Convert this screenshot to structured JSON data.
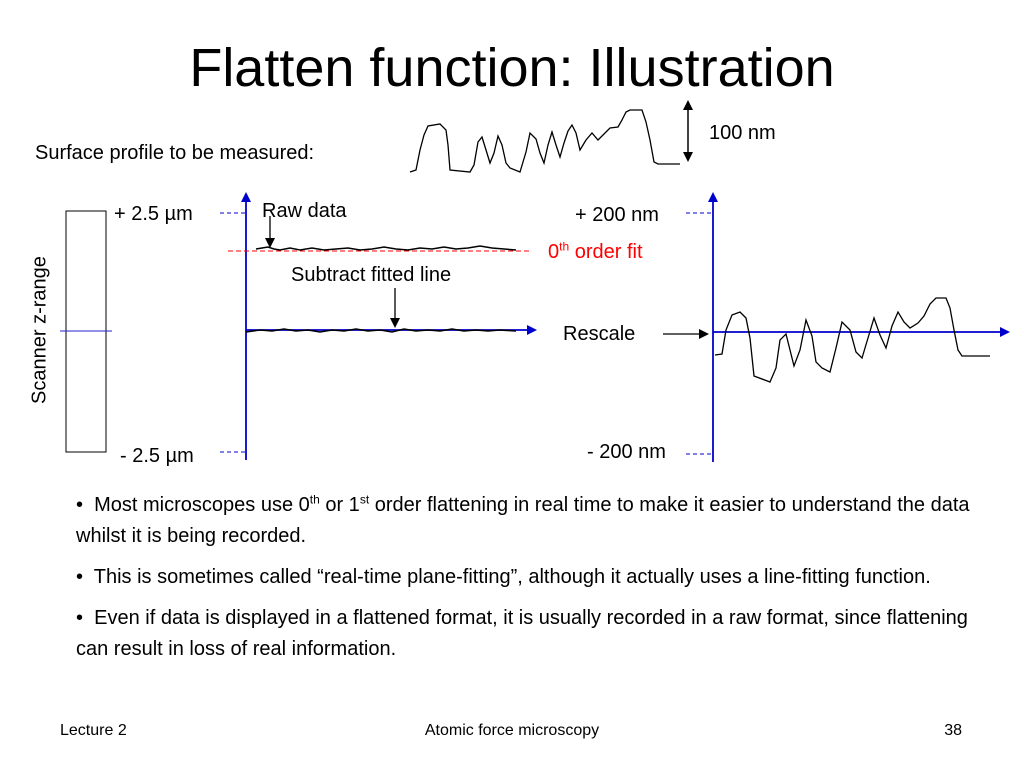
{
  "title": "Flatten function: Illustration",
  "surface_label": "Surface profile to be measured:",
  "scale_label": "100 nm",
  "scanner_label": "Scanner z-range",
  "left_plot": {
    "top_label": "+ 2.5 µm",
    "bottom_label": "- 2.5 µm",
    "raw_data_label": "Raw data",
    "fit_label_main": "0",
    "fit_label_sup": "th",
    "fit_label_rest": " order fit",
    "subtract_label": "Subtract fitted line"
  },
  "right_plot": {
    "top_label": "+ 200 nm",
    "bottom_label": "- 200 nm",
    "rescale_label": "Rescale"
  },
  "bullets": [
    {
      "a": "Most microscopes use 0",
      "s1": "th",
      "b": " or 1",
      "s2": "st",
      "c": " order flattening in real time to make it easier to understand the data whilst it is being recorded."
    },
    {
      "a": "This is sometimes called “real-time plane-fitting”, although it actually uses a line-fitting function."
    },
    {
      "a": "Even if data is displayed in a flattened format, it is usually recorded in a raw format, since flattening can result in loss of real information."
    }
  ],
  "footer": {
    "left": "Lecture 2",
    "center": "Atomic force microscopy",
    "right": "38"
  },
  "colors": {
    "axis": "#0000cc",
    "fit": "#ff0000",
    "text": "#000000"
  }
}
